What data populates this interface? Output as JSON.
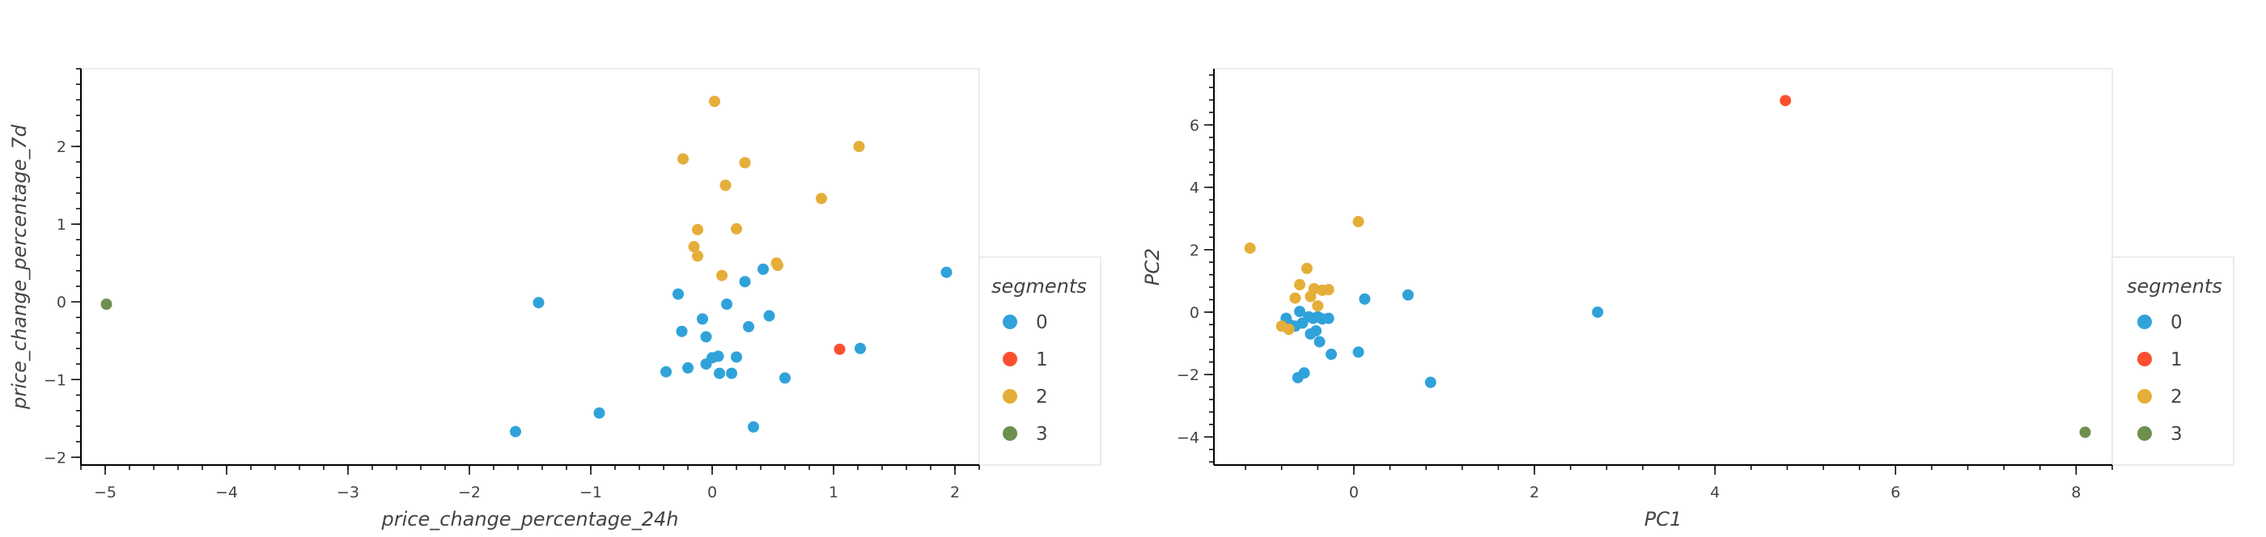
{
  "chart_data": [
    {
      "type": "scatter",
      "xlabel": "price_change_percentage_24h",
      "ylabel": "price_change_percentage_7d",
      "xlim": [
        -5.2,
        2.2
      ],
      "ylim": [
        -2.1,
        3.0
      ],
      "xticks": [
        -5,
        -4,
        -3,
        -2,
        -1,
        0,
        1,
        2
      ],
      "yticks": [
        -2,
        -1,
        0,
        1,
        2
      ],
      "grid": false,
      "legend_title": "segments",
      "legend_position": "right",
      "series": [
        {
          "name": "0",
          "color": "#30a2da",
          "points": [
            [
              -1.62,
              -1.67
            ],
            [
              -1.43,
              -0.01
            ],
            [
              -0.93,
              -1.43
            ],
            [
              -0.38,
              -0.9
            ],
            [
              -0.28,
              0.1
            ],
            [
              -0.25,
              -0.38
            ],
            [
              -0.2,
              -0.85
            ],
            [
              -0.08,
              -0.22
            ],
            [
              -0.05,
              -0.45
            ],
            [
              -0.05,
              -0.8
            ],
            [
              0.0,
              -0.72
            ],
            [
              0.05,
              -0.7
            ],
            [
              0.06,
              -0.92
            ],
            [
              0.12,
              -0.03
            ],
            [
              0.16,
              -0.92
            ],
            [
              0.2,
              -0.71
            ],
            [
              0.27,
              0.26
            ],
            [
              0.3,
              -0.32
            ],
            [
              0.34,
              -1.61
            ],
            [
              0.42,
              0.42
            ],
            [
              0.47,
              -0.18
            ],
            [
              0.6,
              -0.98
            ],
            [
              1.22,
              -0.6
            ],
            [
              1.93,
              0.38
            ]
          ]
        },
        {
          "name": "1",
          "color": "#fc4f30",
          "points": [
            [
              1.05,
              -0.61
            ]
          ]
        },
        {
          "name": "2",
          "color": "#e5ae38",
          "points": [
            [
              -0.24,
              1.84
            ],
            [
              -0.15,
              0.71
            ],
            [
              -0.12,
              0.93
            ],
            [
              -0.12,
              0.59
            ],
            [
              0.02,
              2.58
            ],
            [
              0.08,
              0.34
            ],
            [
              0.11,
              1.5
            ],
            [
              0.2,
              0.94
            ],
            [
              0.27,
              1.79
            ],
            [
              0.53,
              0.5
            ],
            [
              0.54,
              0.47
            ],
            [
              0.9,
              1.33
            ],
            [
              1.21,
              2.0
            ]
          ]
        },
        {
          "name": "3",
          "color": "#6d904f",
          "points": [
            [
              -4.99,
              -0.03
            ]
          ]
        }
      ]
    },
    {
      "type": "scatter",
      "xlabel": "PC1",
      "ylabel": "PC2",
      "xlim": [
        -1.55,
        8.4
      ],
      "ylim": [
        -4.9,
        7.8
      ],
      "xticks": [
        0,
        2,
        4,
        6,
        8
      ],
      "yticks": [
        -4,
        -2,
        0,
        2,
        4,
        6
      ],
      "grid": false,
      "legend_title": "segments",
      "legend_position": "right",
      "series": [
        {
          "name": "0",
          "color": "#30a2da",
          "points": [
            [
              -0.75,
              -0.2
            ],
            [
              -0.7,
              -0.42
            ],
            [
              -0.62,
              -2.1
            ],
            [
              -0.6,
              0.02
            ],
            [
              -0.57,
              -0.35
            ],
            [
              -0.55,
              -1.95
            ],
            [
              -0.5,
              -0.15
            ],
            [
              -0.48,
              -0.7
            ],
            [
              -0.45,
              -0.2
            ],
            [
              -0.42,
              -0.6
            ],
            [
              -0.4,
              -0.15
            ],
            [
              -0.38,
              -0.95
            ],
            [
              -0.35,
              -0.22
            ],
            [
              -0.28,
              -0.2
            ],
            [
              -0.25,
              -1.35
            ],
            [
              0.05,
              -1.28
            ],
            [
              0.12,
              0.42
            ],
            [
              0.6,
              0.55
            ],
            [
              0.85,
              -2.25
            ],
            [
              2.7,
              0.0
            ],
            [
              -0.65,
              -0.45
            ]
          ]
        },
        {
          "name": "1",
          "color": "#fc4f30",
          "points": [
            [
              4.78,
              6.78
            ]
          ]
        },
        {
          "name": "2",
          "color": "#e5ae38",
          "points": [
            [
              -1.15,
              2.05
            ],
            [
              -0.8,
              -0.45
            ],
            [
              -0.65,
              0.45
            ],
            [
              -0.6,
              0.88
            ],
            [
              -0.52,
              1.4
            ],
            [
              -0.48,
              0.5
            ],
            [
              -0.44,
              0.75
            ],
            [
              -0.4,
              0.2
            ],
            [
              -0.35,
              0.7
            ],
            [
              -0.28,
              0.72
            ],
            [
              0.05,
              2.9
            ],
            [
              -0.72,
              -0.55
            ]
          ]
        },
        {
          "name": "3",
          "color": "#6d904f",
          "points": [
            [
              8.1,
              -3.85
            ]
          ]
        }
      ]
    }
  ]
}
